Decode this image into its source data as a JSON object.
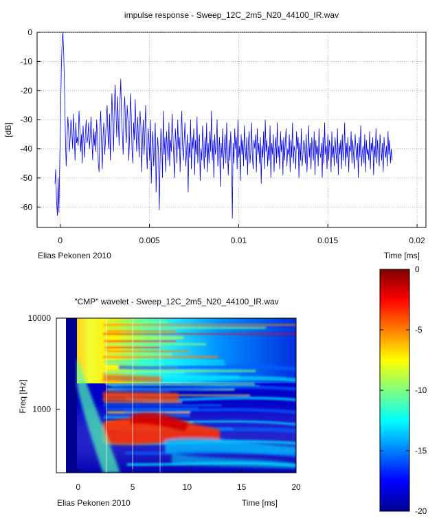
{
  "chart_data": [
    {
      "type": "line",
      "title": "impulse response -  Sweep_12C_2m5_N20_44100_IR.wav",
      "ylabel": "[dB]",
      "xlabel": "Time [ms]",
      "credit": "Elias Pekonen 2010",
      "xlim": [
        -0.0013,
        0.0205
      ],
      "ylim": [
        -67,
        0
      ],
      "xticks": [
        "0",
        "0.005",
        "0.01",
        "0.015",
        "0.02"
      ],
      "xtick_values": [
        0,
        0.005,
        0.01,
        0.015,
        0.02
      ],
      "yticks": [
        "0",
        "-10",
        "-20",
        "-30",
        "-40",
        "-50",
        "-60"
      ],
      "ytick_values": [
        0,
        -10,
        -20,
        -30,
        -40,
        -50,
        -60
      ],
      "grid": true,
      "series_color": "#0000ee",
      "x_start": -0.0003,
      "x_step": 4.5e-05,
      "values": [
        -52,
        -47,
        -58,
        -63,
        -50,
        -62,
        -44,
        -30,
        -12,
        -3,
        0,
        -8,
        -20,
        -36,
        -46,
        -38,
        -29,
        -33,
        -41,
        -36,
        -30,
        -34,
        -40,
        -28,
        -35,
        -44,
        -31,
        -38,
        -36,
        -39,
        -27,
        -33,
        -41,
        -35,
        -45,
        -32,
        -37,
        -43,
        -34,
        -30,
        -38,
        -36,
        -31,
        -40,
        -35,
        -29,
        -37,
        -44,
        -33,
        -39,
        -34,
        -41,
        -30,
        -36,
        -45,
        -48,
        -33,
        -27,
        -38,
        -47,
        -35,
        -31,
        -42,
        -37,
        -30,
        -25,
        -35,
        -40,
        -28,
        -44,
        -33,
        -21,
        -30,
        -41,
        -26,
        -18,
        -27,
        -36,
        -22,
        -31,
        -39,
        -24,
        -16,
        -29,
        -35,
        -42,
        -27,
        -22,
        -33,
        -38,
        -25,
        -30,
        -44,
        -36,
        -21,
        -28,
        -40,
        -45,
        -31,
        -37,
        -23,
        -34,
        -41,
        -29,
        -36,
        -43,
        -27,
        -32,
        -48,
        -38,
        -30,
        -42,
        -35,
        -25,
        -40,
        -47,
        -33,
        -37,
        -44,
        -30,
        -52,
        -39,
        -34,
        -46,
        -40,
        -31,
        -55,
        -43,
        -36,
        -41,
        -61,
        -45,
        -33,
        -38,
        -50,
        -27,
        -42,
        -36,
        -48,
        -34,
        -39,
        -44,
        -31,
        -46,
        -37,
        -41,
        -28,
        -35,
        -43,
        -50,
        -33,
        -38,
        -45,
        -30,
        -40,
        -36,
        -48,
        -34,
        -27,
        -39,
        -44,
        -37,
        -31,
        -46,
        -41,
        -35,
        -55,
        -38,
        -43,
        -30,
        -47,
        -36,
        -40,
        -33,
        -49,
        -37,
        -42,
        -29,
        -45,
        -38,
        -35,
        -51,
        -40,
        -44,
        -32,
        -39,
        -47,
        -36,
        -43,
        -31,
        -48,
        -38,
        -45,
        -34,
        -41,
        -27,
        -44,
        -37,
        -50,
        -35,
        -42,
        -39,
        -30,
        -46,
        -40,
        -36,
        -53,
        -38,
        -43,
        -33,
        -47,
        -39,
        -35,
        -45,
        -31,
        -42,
        -49,
        -37,
        -44,
        -34,
        -41,
        -64,
        -38,
        -45,
        -33,
        -40,
        -36,
        -47,
        -30,
        -43,
        -39,
        -51,
        -35,
        -42,
        -37,
        -46,
        -32,
        -40,
        -44,
        -36,
        -49,
        -38,
        -34,
        -45,
        -41,
        -31,
        -43,
        -47,
        -37,
        -40,
        -35,
        -48,
        -33,
        -42,
        -38,
        -45,
        -36,
        -52,
        -39,
        -43,
        -34,
        -47,
        -30,
        -41,
        -37,
        -46,
        -39,
        -44,
        -32,
        -50,
        -38,
        -42,
        -35,
        -48,
        -40,
        -36,
        -45,
        -31,
        -43,
        -39,
        -47,
        -34,
        -41,
        -37,
        -49,
        -36,
        -44,
        -38,
        -33,
        -46,
        -40,
        -42,
        -35,
        -48,
        -37,
        -43,
        -31,
        -45,
        -39,
        -41,
        -47,
        -34,
        -40,
        -36,
        -50,
        -38,
        -44,
        -33,
        -46,
        -42,
        -37,
        -39,
        -45,
        -35,
        -48,
        -41,
        -32,
        -43,
        -38,
        -47,
        -36,
        -40,
        -44,
        -34,
        -49,
        -37,
        -42,
        -39,
        -46,
        -33,
        -41,
        -43,
        -38,
        -50,
        -36,
        -45,
        -31,
        -42,
        -39,
        -47,
        -35,
        -44,
        -37,
        -40,
        -48,
        -34,
        -43,
        -39,
        -46,
        -36,
        -41,
        -45,
        -33,
        -49,
        -38,
        -42,
        -37,
        -47,
        -35,
        -44,
        -40,
        -31,
        -46,
        -38,
        -43,
        -36,
        -48,
        -39,
        -41,
        -34,
        -45,
        -37,
        -42,
        -47,
        -35,
        -40,
        -44,
        -38,
        -50,
        -36,
        -43,
        -32,
        -46,
        -41,
        -39,
        -45,
        -35,
        -48,
        -37,
        -42,
        -40,
        -44,
        -34,
        -47,
        -38,
        -41,
        -36,
        -49,
        -39,
        -43,
        -33,
        -45,
        -37,
        -42,
        -46,
        -35,
        -40,
        -44,
        -38,
        -48,
        -36,
        -41,
        -43,
        -39,
        -46,
        -34,
        -42,
        -37,
        -45,
        -40,
        -44
      ]
    },
    {
      "type": "heatmap",
      "title": "\"CMP\" wavelet -  Sweep_12C_2m5_N20_44100_IR.wav",
      "ylabel": "Freq [Hz]",
      "xlabel": "Time [ms]",
      "credit": "Elias Pekonen 2010",
      "xlim": [
        -2,
        20
      ],
      "ylim_hz": [
        200,
        10000
      ],
      "y_scale": "log",
      "xticks": [
        "0",
        "5",
        "10",
        "15",
        "20"
      ],
      "xtick_values": [
        0,
        5,
        10,
        15,
        20
      ],
      "yticks": [
        "10000",
        "1000"
      ],
      "ytick_values": [
        10000,
        1000
      ],
      "colorbar": {
        "range": [
          -20,
          0
        ],
        "ticks": [
          "0",
          "-5",
          "-10",
          "-15",
          "-20"
        ],
        "tick_values": [
          0,
          -5,
          -10,
          -15,
          -20
        ],
        "colormap": "jet"
      }
    }
  ]
}
